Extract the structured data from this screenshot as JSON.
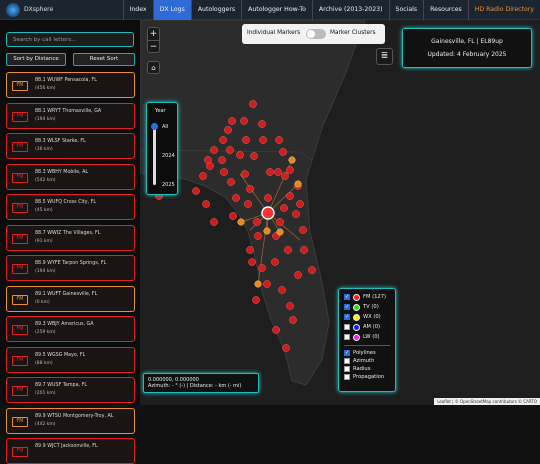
{
  "header": {
    "logo": "DXsphere",
    "nav": [
      "Index",
      "DX Logs",
      "Autologgers",
      "Autologger How-To",
      "Archive (2013-2023)",
      "Socials",
      "Resources",
      "HD Radio Directory"
    ]
  },
  "sidebar": {
    "search_placeholder": "Search by call letters...",
    "buttons": [
      "Sort by Distance",
      "Reset Sort"
    ],
    "stations": [
      {
        "band": "FM",
        "name": "88.1 WUWF Pensacola, FL",
        "distance": "(456 km)",
        "color": "#e8902a"
      },
      {
        "band": "FM",
        "name": "88.1 WRYT Thomasville, GA",
        "distance": "(194 km)",
        "color": "#e02020"
      },
      {
        "band": "FM",
        "name": "88.3 WLSF Starke, FL",
        "distance": "(36 km)",
        "color": "#e02020"
      },
      {
        "band": "FM",
        "name": "88.3 WBHY Mobile, AL",
        "distance": "(542 km)",
        "color": "#e02020"
      },
      {
        "band": "FM",
        "name": "88.5 WUFQ Cross City, FL",
        "distance": "(45 km)",
        "color": "#e02020"
      },
      {
        "band": "FM",
        "name": "88.7 WWIZ The Villages, FL",
        "distance": "(91 km)",
        "color": "#e02020"
      },
      {
        "band": "FM",
        "name": "88.9 WYFE Tarpon Springs, FL",
        "distance": "(194 km)",
        "color": "#e02020"
      },
      {
        "band": "FM",
        "name": "89.1 WUFT Gainesville, FL",
        "distance": "(0 km)",
        "color": "#e8902a"
      },
      {
        "band": "FM",
        "name": "89.3 WBJY Americus, GA",
        "distance": "(259 km)",
        "color": "#e02020"
      },
      {
        "band": "FM",
        "name": "89.5 WGSG Mayo, FL",
        "distance": "(88 km)",
        "color": "#e02020"
      },
      {
        "band": "FM",
        "name": "89.7 WUSF Tampa, FL",
        "distance": "(201 km)",
        "color": "#e02020"
      },
      {
        "band": "FM",
        "name": "89.9 WTSU Montgomery-Troy, AL",
        "distance": "(442 km)",
        "color": "#e8902a"
      },
      {
        "band": "FM",
        "name": "89.9 WJCT Jacksonville, FL",
        "distance": "",
        "color": "#e02020"
      }
    ]
  },
  "map": {
    "zoom": [
      "+",
      "−"
    ],
    "toggle": {
      "left": "Individual Markers",
      "right": "Marker Clusters"
    },
    "year": {
      "title": "Year",
      "options": [
        "All",
        "2024",
        "2025"
      ]
    },
    "info": {
      "location": "Gainesville, FL | EL89up",
      "updated": "Updated: 4 February 2025"
    },
    "legend": {
      "layers": [
        {
          "label": "FM (127)",
          "color": "#ff1a1a",
          "checked": true
        },
        {
          "label": "TV (0)",
          "color": "#22dd22",
          "checked": true
        },
        {
          "label": "WX (0)",
          "color": "#ffee00",
          "checked": true
        },
        {
          "label": "AM (0)",
          "color": "#1a1aff",
          "checked": false
        },
        {
          "label": "LW (0)",
          "color": "#ee22ee",
          "checked": false
        }
      ],
      "overlays": [
        {
          "label": "Polylines",
          "checked": true
        },
        {
          "label": "Azimuth",
          "checked": false
        },
        {
          "label": "Radius",
          "checked": false
        },
        {
          "label": "Propagation",
          "checked": false
        }
      ]
    },
    "coordinates": "0.000000, 0.000000",
    "measure": "Azimuth: - ° (-) | Distance: - km (- mi)",
    "attribution": "Leaflet | © OpenStreetMap contributors © CARTO"
  }
}
